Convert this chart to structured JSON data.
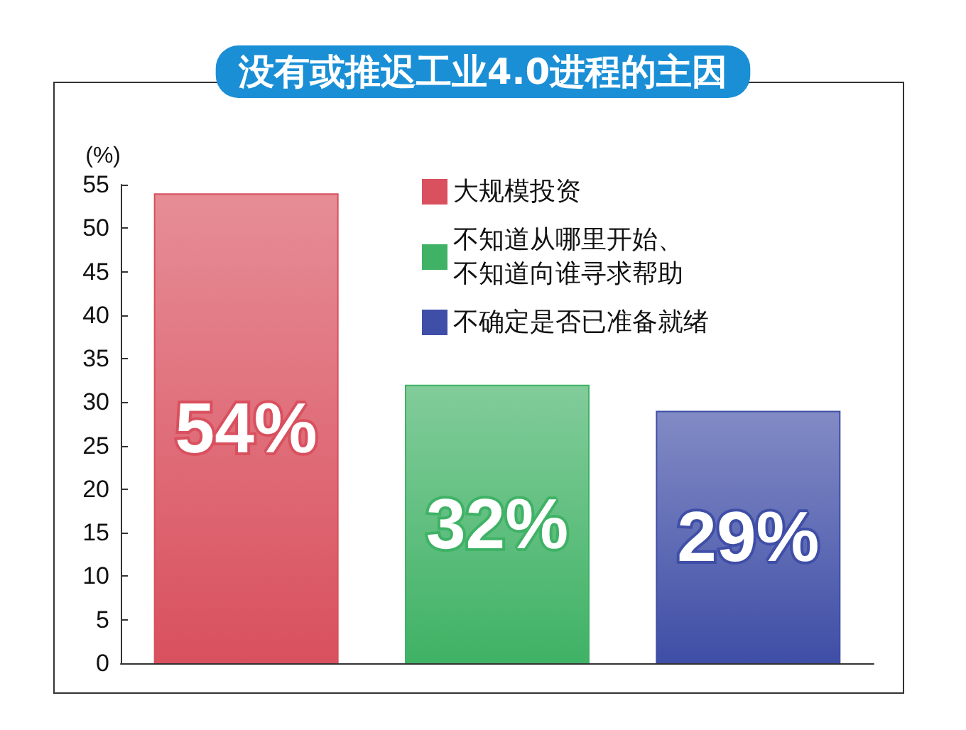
{
  "chart_data": {
    "type": "bar",
    "title": "没有或推迟工业4.0进程的主因",
    "ylabel": "(%)",
    "categories": [
      null,
      null,
      null
    ],
    "series": [
      {
        "name": "大规模投资",
        "color": "#d9505e",
        "values": [
          54,
          null,
          null
        ],
        "value_labels": [
          "54%",
          null,
          null
        ]
      },
      {
        "name": "不知道从哪里开始、不知道向谁寻求帮助",
        "color": "#3fb265",
        "values": [
          null,
          32,
          null
        ],
        "value_labels": [
          null,
          "32%",
          null
        ]
      },
      {
        "name": "不确定是否已准备就绪",
        "color": "#3f4ea6",
        "values": [
          null,
          null,
          29
        ],
        "value_labels": [
          null,
          null,
          "29%"
        ]
      }
    ],
    "ylim": [
      0,
      55
    ],
    "yticks": [
      0,
      5,
      10,
      15,
      20,
      25,
      30,
      35,
      40,
      45,
      50,
      55
    ],
    "grid": false,
    "legend": "top right"
  }
}
